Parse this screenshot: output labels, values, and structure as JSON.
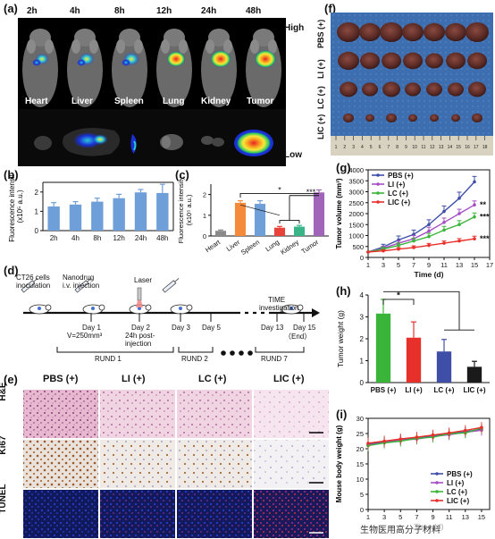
{
  "panels": {
    "a": "(a)",
    "b": "(b)",
    "c": "(c)",
    "d": "(d)",
    "e": "(e)",
    "f": "(f)",
    "g": "(g)",
    "h": "(h)",
    "i": "(i)"
  },
  "a": {
    "timepoints": [
      "2h",
      "4h",
      "8h",
      "12h",
      "24h",
      "48h"
    ],
    "organs": [
      "Heart",
      "Liver",
      "Spleen",
      "Lung",
      "Kidney",
      "Tumor"
    ],
    "scale_high": "High",
    "scale_low": "Low",
    "colors": {
      "high": "#e8202a",
      "mid": "#f7e93a",
      "low": "#1a2fd6",
      "mid2": "#28c8d9"
    }
  },
  "d": {
    "labels": {
      "inoculation": "CT26 cells\ninoculation",
      "injection": "Nanodrug\ni.v. injection",
      "laser": "Laser",
      "time": "TIME",
      "investigation": "investigation",
      "day1": "Day 1",
      "v": "V=250mm³",
      "day2": "Day 2",
      "post": "24h post-\ninjection",
      "day3": "Day 3",
      "day5": "Day 5",
      "day13": "Day 13",
      "day15": "Day 15",
      "end": "（End）",
      "rund1": "RUND 1",
      "rund2": "RUND 2",
      "rund7": "RUND 7"
    }
  },
  "e": {
    "groups": [
      "PBS (+)",
      "LI (+)",
      "LC (+)",
      "LIC (+)"
    ],
    "rows": [
      "H&E",
      "Ki67",
      "TUNEL"
    ]
  },
  "f": {
    "groups": [
      "PBS (+)",
      "LI (+)",
      "LC (+)",
      "LIC (+)"
    ],
    "ruler": [
      "1",
      "2",
      "3",
      "4",
      "5",
      "6",
      "7",
      "8",
      "9",
      "10",
      "11",
      "12",
      "13",
      "14",
      "15",
      "16",
      "17",
      "18"
    ]
  },
  "watermark": "生物医用高分子材料",
  "chart_data": [
    {
      "id": "b",
      "type": "bar",
      "categories": [
        "2h",
        "4h",
        "8h",
        "12h",
        "24h",
        "48h"
      ],
      "values": [
        1.25,
        1.35,
        1.5,
        1.68,
        1.98,
        1.95
      ],
      "errors": [
        0.2,
        0.15,
        0.18,
        0.2,
        0.15,
        0.45
      ],
      "ylabel": "Fluorescence intensity",
      "ylabel2": "(x10⁵ a.u.)",
      "ylim": [
        0,
        2.5
      ],
      "yticks": [
        "0",
        "1",
        "2"
      ],
      "color": "#6f9fd8"
    },
    {
      "id": "c",
      "type": "bar",
      "categories": [
        "Heart",
        "Liver",
        "Spleen",
        "Lung",
        "Kidney",
        "Tumor"
      ],
      "values": [
        0.25,
        1.6,
        1.55,
        0.4,
        0.45,
        2.1
      ],
      "errors": [
        0.04,
        0.1,
        0.15,
        0.06,
        0.06,
        0.12
      ],
      "colors": [
        "#8a8a8a",
        "#f58b3a",
        "#6f9fd8",
        "#e8423a",
        "#3ab58a",
        "#a064b8"
      ],
      "ylabel": "Fluorescence intensity",
      "ylabel2": "(x10⁵ a.u.)",
      "ylim": [
        0,
        2.5
      ],
      "yticks": [
        "0",
        "1",
        "2"
      ],
      "annotations": [
        "*",
        "***"
      ]
    },
    {
      "id": "g",
      "type": "line",
      "x": [
        1,
        3,
        5,
        7,
        9,
        11,
        13,
        15
      ],
      "xticks": [
        "1",
        "3",
        "5",
        "7",
        "9",
        "11",
        "13",
        "15",
        "17"
      ],
      "yticks": [
        "0",
        "500",
        "1000",
        "1500",
        "2000",
        "2500",
        "3000",
        "3500",
        "4000"
      ],
      "xlabel": "Time (d)",
      "ylabel": "Tumor volume (mm³)",
      "xlim": [
        1,
        17
      ],
      "ylim": [
        0,
        4000
      ],
      "series": [
        {
          "name": "PBS (+)",
          "color": "#3f4fa8",
          "values": [
            250,
            480,
            800,
            1050,
            1500,
            2100,
            2700,
            3450
          ],
          "errors": [
            0,
            120,
            180,
            200,
            220,
            250,
            280,
            250
          ]
        },
        {
          "name": "LI (+)",
          "color": "#a64fc4",
          "values": [
            250,
            420,
            650,
            850,
            1200,
            1600,
            2000,
            2400
          ],
          "errors": [
            0,
            90,
            120,
            150,
            180,
            200,
            200,
            180
          ]
        },
        {
          "name": "LC (+)",
          "color": "#3ab53a",
          "values": [
            250,
            380,
            550,
            750,
            950,
            1250,
            1500,
            1850
          ],
          "errors": [
            0,
            80,
            110,
            130,
            150,
            170,
            180,
            180
          ]
        },
        {
          "name": "LIC (+)",
          "color": "#e8302a",
          "values": [
            250,
            300,
            380,
            450,
            550,
            650,
            750,
            850
          ],
          "errors": [
            0,
            50,
            70,
            80,
            90,
            100,
            110,
            120
          ]
        }
      ],
      "sig": [
        "**",
        "***",
        "***"
      ]
    },
    {
      "id": "h",
      "type": "bar",
      "categories": [
        "PBS (+)",
        "LI (+)",
        "LC (+)",
        "LIC (+)"
      ],
      "values": [
        3.15,
        2.05,
        1.42,
        0.72
      ],
      "errors": [
        0.65,
        0.72,
        0.55,
        0.25
      ],
      "colors": [
        "#3ab53a",
        "#e8302a",
        "#3f4fa8",
        "#1a1a1a"
      ],
      "ylabel": "Tumor weight (g)",
      "ylim": [
        0,
        4
      ],
      "yticks": [
        "0",
        "1",
        "2",
        "3",
        "4"
      ],
      "annotations": [
        "*",
        "***"
      ]
    },
    {
      "id": "i",
      "type": "line",
      "x": [
        1,
        3,
        5,
        7,
        9,
        11,
        13,
        15
      ],
      "xticks": [
        "1",
        "3",
        "5",
        "7",
        "9",
        "11",
        "13",
        "15"
      ],
      "yticks": [
        "0",
        "5",
        "10",
        "15",
        "20",
        "25",
        "30"
      ],
      "xlabel": "Time (d)",
      "ylabel": "Mouse body weight (g)",
      "xlim": [
        1,
        16
      ],
      "ylim": [
        0,
        30
      ],
      "series": [
        {
          "name": "PBS (+)",
          "color": "#3f4fa8",
          "values": [
            21.5,
            22.3,
            23.0,
            23.5,
            24.2,
            24.8,
            25.6,
            26.4
          ]
        },
        {
          "name": "LI (+)",
          "color": "#a64fc4",
          "values": [
            21.2,
            22.0,
            22.8,
            23.2,
            24.0,
            24.6,
            25.4,
            26.1
          ]
        },
        {
          "name": "LC (+)",
          "color": "#3ab53a",
          "values": [
            21.0,
            21.9,
            22.5,
            23.4,
            23.8,
            24.9,
            25.2,
            26.8
          ]
        },
        {
          "name": "LIC (+)",
          "color": "#e8302a",
          "values": [
            21.8,
            22.5,
            23.2,
            23.8,
            24.5,
            25.2,
            26.0,
            27.0
          ]
        }
      ]
    }
  ]
}
